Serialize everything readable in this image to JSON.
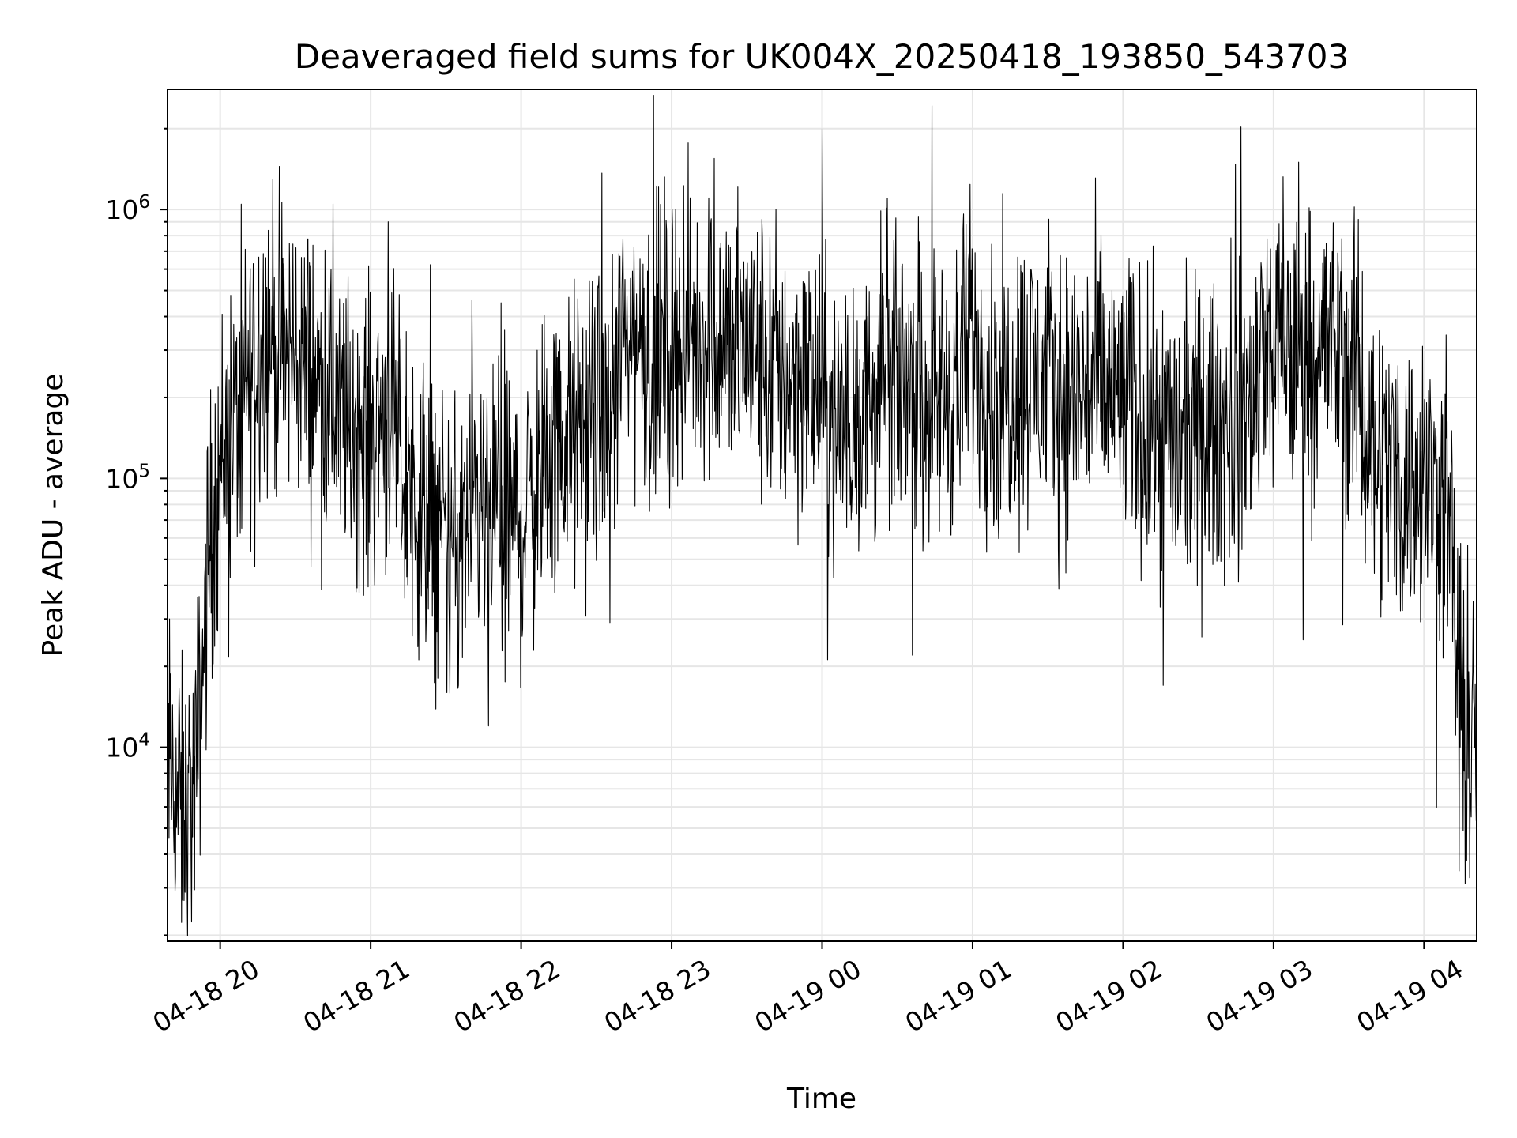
{
  "chart_data": {
    "type": "line",
    "title": "Deaveraged field sums for UK004X_20250418_193850_543703",
    "xlabel": "Time",
    "ylabel": "Peak ADU - average",
    "yscale": "log",
    "xlim": [
      "04-18 19:39",
      "04-19 04:21"
    ],
    "ylim": [
      1900,
      2800000
    ],
    "grid": true,
    "legend": "none",
    "x_ticks": [
      "04-18 20",
      "04-18 21",
      "04-18 22",
      "04-18 23",
      "04-19 00",
      "04-19 01",
      "04-19 02",
      "04-19 03",
      "04-19 04"
    ],
    "y_ticks": [
      {
        "base": "10",
        "exp": "4",
        "value": 10000
      },
      {
        "base": "10",
        "exp": "5",
        "value": 100000
      },
      {
        "base": "10",
        "exp": "6",
        "value": 1000000
      }
    ],
    "colors": {
      "line": "#000000",
      "grid": "#e6e6e6",
      "axes": "#000000"
    },
    "series": [
      {
        "x": [
          "04-18 19:39",
          "04-18 19:45",
          "04-18 19:50",
          "04-18 19:55",
          "04-18 20:00",
          "04-18 20:05",
          "04-18 20:10",
          "04-18 20:15",
          "04-18 20:20",
          "04-18 20:25",
          "04-18 20:30",
          "04-18 20:35",
          "04-18 20:40",
          "04-18 20:45",
          "04-18 20:50",
          "04-18 20:55",
          "04-18 21:00",
          "04-18 21:05",
          "04-18 21:10",
          "04-18 21:15",
          "04-18 21:20",
          "04-18 21:25",
          "04-18 21:30",
          "04-18 21:35",
          "04-18 21:40",
          "04-18 21:45",
          "04-18 21:50",
          "04-18 21:55",
          "04-18 22:00",
          "04-18 22:05",
          "04-18 22:10",
          "04-18 22:15",
          "04-18 22:20",
          "04-18 22:25",
          "04-18 22:30",
          "04-18 22:35",
          "04-18 22:40",
          "04-18 22:45",
          "04-18 22:50",
          "04-18 22:55",
          "04-18 23:00",
          "04-18 23:05",
          "04-18 23:10",
          "04-18 23:15",
          "04-18 23:20",
          "04-18 23:25",
          "04-18 23:30",
          "04-18 23:35",
          "04-18 23:40",
          "04-18 23:45",
          "04-18 23:50",
          "04-18 23:55",
          "04-19 00:00",
          "04-19 00:05",
          "04-19 00:10",
          "04-19 00:15",
          "04-19 00:20",
          "04-19 00:25",
          "04-19 00:30",
          "04-19 00:35",
          "04-19 00:40",
          "04-19 00:45",
          "04-19 00:50",
          "04-19 00:55",
          "04-19 01:00",
          "04-19 01:05",
          "04-19 01:10",
          "04-19 01:15",
          "04-19 01:20",
          "04-19 01:25",
          "04-19 01:30",
          "04-19 01:35",
          "04-19 01:40",
          "04-19 01:45",
          "04-19 01:50",
          "04-19 01:55",
          "04-19 02:00",
          "04-19 02:05",
          "04-19 02:10",
          "04-19 02:15",
          "04-19 02:20",
          "04-19 02:25",
          "04-19 02:30",
          "04-19 02:35",
          "04-19 02:40",
          "04-19 02:45",
          "04-19 02:50",
          "04-19 02:55",
          "04-19 03:00",
          "04-19 03:05",
          "04-19 03:10",
          "04-19 03:15",
          "04-19 03:20",
          "04-19 03:25",
          "04-19 03:30",
          "04-19 03:35",
          "04-19 03:40",
          "04-19 03:45",
          "04-19 03:50",
          "04-19 03:55",
          "04-19 04:00",
          "04-19 04:05",
          "04-19 04:10",
          "04-19 04:15",
          "04-19 04:20"
        ],
        "y": [
          9000,
          5500,
          7000,
          45000,
          120000,
          150000,
          200000,
          320000,
          350000,
          280000,
          300000,
          250000,
          220000,
          180000,
          160000,
          150000,
          140000,
          180000,
          130000,
          90000,
          75000,
          70000,
          60000,
          55000,
          65000,
          70000,
          75000,
          72000,
          70000,
          90000,
          110000,
          130000,
          140000,
          150000,
          160000,
          150000,
          320000,
          350000,
          300000,
          300000,
          320000,
          330000,
          340000,
          350000,
          330000,
          310000,
          320000,
          280000,
          250000,
          240000,
          250000,
          230000,
          200000,
          160000,
          150000,
          180000,
          200000,
          220000,
          230000,
          240000,
          220000,
          210000,
          200000,
          230000,
          350000,
          250000,
          200000,
          220000,
          250000,
          240000,
          230000,
          220000,
          200000,
          210000,
          220000,
          200000,
          200000,
          180000,
          150000,
          160000,
          140000,
          130000,
          140000,
          150000,
          150000,
          170000,
          180000,
          280000,
          300000,
          280000,
          270000,
          300000,
          320000,
          300000,
          250000,
          200000,
          130000,
          120000,
          100000,
          95000,
          100000,
          90000,
          70000,
          12000,
          10000
        ],
        "spikes": [
          {
            "x": "04-18 19:45",
            "y": 2700,
            "dir": "down"
          },
          {
            "x": "04-18 20:45",
            "y": 1050000,
            "dir": "up"
          },
          {
            "x": "04-18 21:07",
            "y": 900000,
            "dir": "up"
          },
          {
            "x": "04-18 21:35",
            "y": 17000,
            "dir": "down"
          },
          {
            "x": "04-18 21:47",
            "y": 12000,
            "dir": "down"
          },
          {
            "x": "04-18 21:52",
            "y": 450000,
            "dir": "up"
          },
          {
            "x": "04-18 23:17",
            "y": 1550000,
            "dir": "up"
          },
          {
            "x": "04-19 00:00",
            "y": 2000000,
            "dir": "up"
          },
          {
            "x": "04-19 00:26",
            "y": 1100000,
            "dir": "up"
          },
          {
            "x": "04-19 02:16",
            "y": 17000,
            "dir": "down"
          },
          {
            "x": "04-19 03:10",
            "y": 1500000,
            "dir": "up"
          },
          {
            "x": "04-19 04:17",
            "y": 3800,
            "dir": "down"
          }
        ]
      }
    ]
  }
}
